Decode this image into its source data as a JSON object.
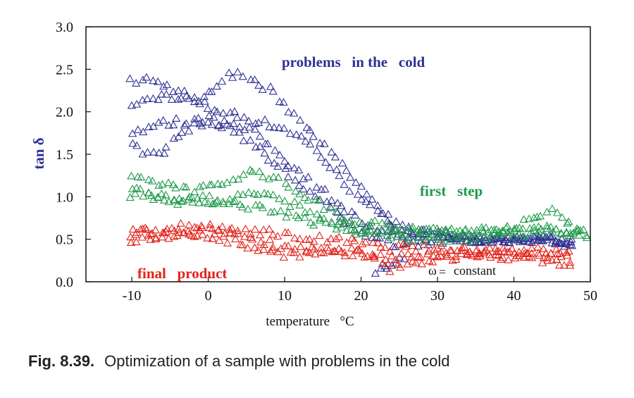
{
  "chart_data": {
    "type": "scatter",
    "title": "",
    "xlabel": "temperature   °C",
    "ylabel": "tan δ",
    "xlim": [
      -16,
      50
    ],
    "ylim": [
      0,
      3.0
    ],
    "x_ticks": [
      -10,
      0,
      10,
      20,
      30,
      40,
      50
    ],
    "x_tick_labels": [
      "-10",
      "0",
      "10",
      "20",
      "30",
      "40",
      "50"
    ],
    "y_ticks": [
      0,
      0.5,
      1.0,
      1.5,
      2.0,
      2.5,
      3.0
    ],
    "y_tick_labels": [
      "0.0",
      "0.5",
      "1.0",
      "1.5",
      "2.0",
      "2.5",
      "3.0"
    ],
    "marker": "open-triangle",
    "series": [
      {
        "name": "problems in the cold",
        "color": "#2e3192",
        "curves": [
          [
            [
              -10,
              2.35
            ],
            [
              -8,
              2.38
            ],
            [
              -6,
              2.32
            ],
            [
              -4,
              2.25
            ],
            [
              -2,
              2.15
            ],
            [
              0,
              2.05
            ],
            [
              2,
              2.0
            ],
            [
              4,
              1.95
            ],
            [
              6,
              1.9
            ],
            [
              8,
              1.85
            ],
            [
              10,
              1.8
            ],
            [
              12,
              1.7
            ],
            [
              14,
              1.55
            ],
            [
              16,
              1.35
            ],
            [
              18,
              1.15
            ],
            [
              20,
              1.0
            ],
            [
              22,
              0.8
            ],
            [
              24,
              0.7
            ],
            [
              26,
              0.6
            ],
            [
              30,
              0.55
            ],
            [
              35,
              0.5
            ],
            [
              40,
              0.5
            ],
            [
              45,
              0.5
            ],
            [
              48,
              0.45
            ]
          ],
          [
            [
              -10,
              2.1
            ],
            [
              -8,
              2.15
            ],
            [
              -6,
              2.2
            ],
            [
              -4,
              2.15
            ],
            [
              -2,
              2.1
            ],
            [
              0,
              2.2
            ],
            [
              2,
              2.4
            ],
            [
              4,
              2.45
            ],
            [
              6,
              2.35
            ],
            [
              8,
              2.25
            ],
            [
              10,
              2.1
            ],
            [
              12,
              1.9
            ],
            [
              14,
              1.75
            ],
            [
              16,
              1.5
            ],
            [
              18,
              1.3
            ],
            [
              20,
              1.1
            ],
            [
              22,
              0.85
            ],
            [
              24,
              0.7
            ],
            [
              26,
              0.62
            ],
            [
              30,
              0.55
            ],
            [
              35,
              0.5
            ],
            [
              40,
              0.5
            ],
            [
              45,
              0.52
            ],
            [
              48,
              0.45
            ]
          ],
          [
            [
              -10,
              1.75
            ],
            [
              -8,
              1.82
            ],
            [
              -6,
              1.86
            ],
            [
              -4,
              1.88
            ],
            [
              -2,
              1.88
            ],
            [
              0,
              1.87
            ],
            [
              2,
              1.85
            ],
            [
              4,
              1.82
            ],
            [
              6,
              1.75
            ],
            [
              8,
              1.6
            ],
            [
              10,
              1.45
            ],
            [
              12,
              1.3
            ],
            [
              14,
              1.15
            ],
            [
              16,
              1.0
            ],
            [
              18,
              0.85
            ],
            [
              20,
              0.7
            ],
            [
              22,
              0.58
            ],
            [
              24,
              0.55
            ],
            [
              26,
              0.55
            ],
            [
              30,
              0.5
            ],
            [
              35,
              0.48
            ],
            [
              40,
              0.5
            ],
            [
              45,
              0.5
            ],
            [
              48,
              0.45
            ]
          ],
          [
            [
              -10,
              1.6
            ],
            [
              -8,
              1.5
            ],
            [
              -6,
              1.55
            ],
            [
              -4,
              1.7
            ],
            [
              -2,
              1.85
            ],
            [
              0,
              1.95
            ],
            [
              2,
              1.85
            ],
            [
              4,
              1.75
            ],
            [
              6,
              1.6
            ],
            [
              8,
              1.45
            ],
            [
              10,
              1.3
            ],
            [
              12,
              1.15
            ],
            [
              14,
              1.0
            ],
            [
              16,
              0.85
            ],
            [
              18,
              0.7
            ],
            [
              20,
              0.6
            ],
            [
              22,
              0.5
            ],
            [
              24,
              0.45
            ],
            [
              26,
              0.45
            ],
            [
              30,
              0.48
            ],
            [
              35,
              0.5
            ],
            [
              40,
              0.52
            ],
            [
              45,
              0.5
            ],
            [
              48,
              0.4
            ]
          ],
          [
            [
              22,
              0.12
            ],
            [
              23,
              0.15
            ],
            [
              24,
              0.2
            ],
            [
              25,
              0.25
            ],
            [
              26,
              0.3
            ]
          ]
        ]
      },
      {
        "name": "first step",
        "color": "#1f9a4a",
        "curves": [
          [
            [
              -10,
              1.2
            ],
            [
              -8,
              1.18
            ],
            [
              -6,
              1.15
            ],
            [
              -4,
              1.12
            ],
            [
              -2,
              1.1
            ],
            [
              0,
              1.1
            ],
            [
              2,
              1.15
            ],
            [
              4,
              1.25
            ],
            [
              6,
              1.3
            ],
            [
              8,
              1.25
            ],
            [
              10,
              1.15
            ],
            [
              12,
              1.05
            ],
            [
              14,
              0.95
            ],
            [
              16,
              0.85
            ],
            [
              18,
              0.75
            ],
            [
              20,
              0.7
            ],
            [
              22,
              0.68
            ],
            [
              24,
              0.65
            ],
            [
              26,
              0.62
            ],
            [
              30,
              0.6
            ],
            [
              35,
              0.6
            ],
            [
              40,
              0.65
            ],
            [
              43,
              0.75
            ],
            [
              45,
              0.85
            ],
            [
              48,
              0.65
            ],
            [
              50,
              0.6
            ]
          ],
          [
            [
              -10,
              1.08
            ],
            [
              -8,
              1.05
            ],
            [
              -6,
              1.02
            ],
            [
              -4,
              1.0
            ],
            [
              -2,
              0.98
            ],
            [
              0,
              0.97
            ],
            [
              2,
              0.95
            ],
            [
              4,
              0.92
            ],
            [
              6,
              0.88
            ],
            [
              8,
              0.85
            ],
            [
              10,
              0.8
            ],
            [
              12,
              0.75
            ],
            [
              14,
              0.7
            ],
            [
              16,
              0.65
            ],
            [
              18,
              0.6
            ],
            [
              20,
              0.58
            ],
            [
              22,
              0.58
            ],
            [
              24,
              0.58
            ],
            [
              26,
              0.58
            ],
            [
              30,
              0.58
            ],
            [
              35,
              0.58
            ],
            [
              40,
              0.6
            ],
            [
              45,
              0.62
            ],
            [
              48,
              0.6
            ],
            [
              50,
              0.55
            ]
          ],
          [
            [
              -10,
              1.0
            ],
            [
              -8,
              1.0
            ],
            [
              -6,
              0.98
            ],
            [
              -4,
              0.95
            ],
            [
              -2,
              0.93
            ],
            [
              0,
              0.92
            ],
            [
              2,
              0.95
            ],
            [
              4,
              1.0
            ],
            [
              6,
              1.05
            ],
            [
              8,
              1.0
            ],
            [
              10,
              0.95
            ],
            [
              12,
              0.88
            ],
            [
              14,
              0.8
            ],
            [
              16,
              0.72
            ],
            [
              18,
              0.65
            ],
            [
              20,
              0.6
            ],
            [
              22,
              0.55
            ],
            [
              24,
              0.52
            ],
            [
              26,
              0.5
            ],
            [
              30,
              0.5
            ],
            [
              35,
              0.52
            ],
            [
              40,
              0.55
            ],
            [
              45,
              0.6
            ],
            [
              48,
              0.55
            ],
            [
              50,
              0.45
            ]
          ]
        ]
      },
      {
        "name": "final product",
        "color": "#e2231a",
        "curves": [
          [
            [
              -10,
              0.55
            ],
            [
              -8,
              0.6
            ],
            [
              -6,
              0.62
            ],
            [
              -4,
              0.64
            ],
            [
              -2,
              0.65
            ],
            [
              0,
              0.63
            ],
            [
              2,
              0.62
            ],
            [
              4,
              0.62
            ],
            [
              6,
              0.6
            ],
            [
              8,
              0.58
            ],
            [
              10,
              0.55
            ],
            [
              12,
              0.52
            ],
            [
              14,
              0.5
            ],
            [
              16,
              0.5
            ],
            [
              18,
              0.48
            ],
            [
              20,
              0.45
            ],
            [
              22,
              0.42
            ],
            [
              24,
              0.4
            ],
            [
              26,
              0.4
            ],
            [
              30,
              0.38
            ],
            [
              35,
              0.38
            ],
            [
              40,
              0.38
            ],
            [
              45,
              0.36
            ],
            [
              48,
              0.32
            ]
          ],
          [
            [
              -10,
              0.48
            ],
            [
              -8,
              0.52
            ],
            [
              -6,
              0.55
            ],
            [
              -4,
              0.56
            ],
            [
              -2,
              0.56
            ],
            [
              0,
              0.55
            ],
            [
              2,
              0.5
            ],
            [
              4,
              0.45
            ],
            [
              6,
              0.4
            ],
            [
              8,
              0.36
            ],
            [
              10,
              0.33
            ],
            [
              12,
              0.32
            ],
            [
              14,
              0.32
            ],
            [
              16,
              0.32
            ],
            [
              18,
              0.32
            ],
            [
              20,
              0.32
            ],
            [
              22,
              0.3
            ],
            [
              24,
              0.3
            ],
            [
              26,
              0.3
            ],
            [
              30,
              0.32
            ],
            [
              35,
              0.33
            ],
            [
              40,
              0.32
            ],
            [
              45,
              0.3
            ],
            [
              48,
              0.25
            ]
          ],
          [
            [
              -10,
              0.6
            ],
            [
              -8,
              0.58
            ],
            [
              -6,
              0.5
            ],
            [
              -4,
              0.52
            ],
            [
              -2,
              0.58
            ],
            [
              0,
              0.6
            ],
            [
              2,
              0.58
            ],
            [
              4,
              0.55
            ],
            [
              6,
              0.5
            ],
            [
              8,
              0.46
            ],
            [
              10,
              0.42
            ],
            [
              12,
              0.4
            ],
            [
              14,
              0.38
            ],
            [
              16,
              0.36
            ],
            [
              18,
              0.35
            ],
            [
              20,
              0.35
            ],
            [
              22,
              0.25
            ],
            [
              24,
              0.15
            ],
            [
              26,
              0.2
            ],
            [
              30,
              0.28
            ],
            [
              35,
              0.3
            ],
            [
              40,
              0.3
            ],
            [
              45,
              0.25
            ],
            [
              48,
              0.18
            ]
          ]
        ]
      }
    ],
    "annotations": [
      {
        "text": "problems   in the   cold",
        "color": "#2e3192"
      },
      {
        "text": "first   step",
        "color": "#1f9a4a"
      },
      {
        "text": "final   product",
        "color": "#e2231a"
      },
      {
        "text": "ω",
        "color": "#111111"
      },
      {
        "text": "constant",
        "color": "#111111"
      }
    ]
  },
  "caption": {
    "label": "Fig. 8.39.",
    "text": "Optimization of a sample with problems in the cold"
  }
}
